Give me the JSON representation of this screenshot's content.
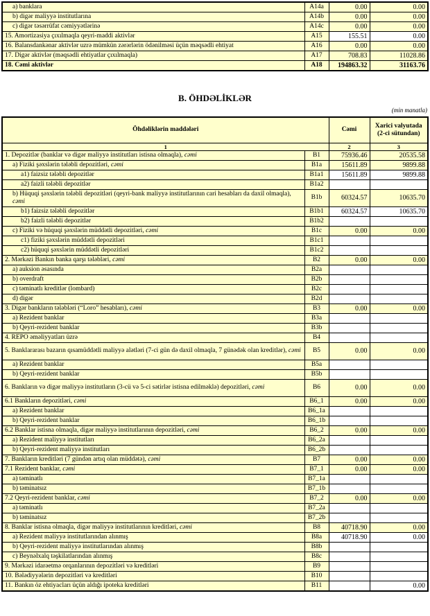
{
  "section_b_title": "B. ÖHDƏLİKLƏR",
  "unit_note": "(min manatla)",
  "colors": {
    "cell_fill": "#FFFFCC",
    "input_fill": "#FFFFFF",
    "border": "#000000",
    "text": "#000000"
  },
  "table_a": {
    "rows": [
      {
        "label": "a) banklara",
        "code": "A14a",
        "total": "0.00",
        "foreign": "0.00",
        "indent": 1
      },
      {
        "label": "b) digər maliyyə institutlarına",
        "code": "A14b",
        "total": "0.00",
        "foreign": "0.00",
        "indent": 1
      },
      {
        "label": "c) digər təsərrüfat cəmiyyətlərinə",
        "code": "A14c",
        "total": "0.00",
        "foreign": "0.00",
        "indent": 1
      },
      {
        "label": "15. Amortizasiya çıxılmaqla qeyri-maddi aktivlər",
        "code": "A15",
        "total": "155.51",
        "foreign": "0.00",
        "indent": 0,
        "input": true
      },
      {
        "label": "16. Balansdankənar aktivlər uzrə mümkün zərərlərin ödənilməsi üçün məqsədli ehtiyat",
        "code": "A16",
        "total": "0.00",
        "foreign": "0.00",
        "indent": 0
      },
      {
        "label": "17. Digər aktivlər (məqsədli ehtiyatlar çıxılmaqla)",
        "code": "A17",
        "total": "708.83",
        "foreign": "11028.86",
        "indent": 0
      },
      {
        "label": "18. Cəmi aktivlər",
        "code": "A18",
        "total": "194863.32",
        "foreign": "31163.76",
        "indent": 0,
        "bold": true
      }
    ]
  },
  "table_b": {
    "header": {
      "items_label": "Öhdəliklərin maddələri",
      "total_label": "Cəmi",
      "foreign_label": "Xarici valyutada (2-ci sütundan)",
      "col1": "1",
      "col2": "2",
      "col3": "3"
    },
    "rows": [
      {
        "label": "1. Depozitlər (banklar və digər maliyyə institutları istisna olmaqla), ",
        "suffix": "cəmi",
        "code": "B1",
        "total": "75936.46",
        "foreign": "20535.58",
        "indent": 0
      },
      {
        "label": "a) Fiziki şəxslərin tələbli depozitləri, ",
        "suffix": "cəmi",
        "code": "B1a",
        "total": "15611.89",
        "foreign": "9899.88",
        "indent": 1
      },
      {
        "label": "a1) faizsiz tələbli depozitlər",
        "code": "B1a1",
        "total": "15611.89",
        "foreign": "9899.88",
        "indent": 2,
        "input": true
      },
      {
        "label": "a2) faizli tələbli depozitlər",
        "code": "B1a2",
        "total": "",
        "foreign": "",
        "indent": 2,
        "input": true
      },
      {
        "label": "b) Hüquqi şəxslərin tələbli depozitləri (qeyri-bank maliyyə institutlarının cari hesabları da daxil olmaqla), ",
        "suffix": "cəmi",
        "code": "B1b",
        "total": "60324.57",
        "foreign": "10635.70",
        "indent": 1,
        "tall": true
      },
      {
        "label": "b1) faizsiz tələbli depozitlər",
        "code": "B1b1",
        "total": "60324.57",
        "foreign": "10635.70",
        "indent": 2,
        "input": true
      },
      {
        "label": "b2) faizli tələbli depozitlər",
        "code": "B1b2",
        "total": "",
        "foreign": "",
        "indent": 2,
        "input": true
      },
      {
        "label": "c) Fiziki və hüquqi şəxslərin müddətli depozitləri, ",
        "suffix": "cəmi",
        "code": "B1c",
        "total": "0.00",
        "foreign": "0.00",
        "indent": 1
      },
      {
        "label": "c1) fiziki şəxslərin müddətli depozitləri",
        "code": "B1c1",
        "total": "",
        "foreign": "",
        "indent": 2,
        "input": true
      },
      {
        "label": "c2) hüquqi şəxslərin müddətli depozitləri",
        "code": "B1c2",
        "total": "",
        "foreign": "",
        "indent": 2,
        "input": true
      },
      {
        "label": "2. Mərkəzi Bankın banka qarşı tələbləri, ",
        "suffix": "cəmi",
        "code": "B2",
        "total": "0.00",
        "foreign": "0.00",
        "indent": 0
      },
      {
        "label": "a) auksion əsasında",
        "code": "B2a",
        "total": "",
        "foreign": "",
        "indent": 1,
        "input": true
      },
      {
        "label": "b) overdraft",
        "code": "B2b",
        "total": "",
        "foreign": "",
        "indent": 1,
        "input": true
      },
      {
        "label": "c) təminatlı kreditlər (lombard)",
        "code": "B2c",
        "total": "",
        "foreign": "",
        "indent": 1,
        "input": true
      },
      {
        "label": "d) digər",
        "code": "B2d",
        "total": "",
        "foreign": "",
        "indent": 1,
        "input": true
      },
      {
        "label": "3. Digər bankların tələbləri (“Loro” hesabları), ",
        "suffix": "cəmi",
        "code": "B3",
        "total": "0.00",
        "foreign": "0.00",
        "indent": 0
      },
      {
        "label": "a) Rezident banklar",
        "code": "B3a",
        "total": "",
        "foreign": "",
        "indent": 1,
        "input": true
      },
      {
        "label": "b) Qeyri-rezident banklar",
        "code": "B3b",
        "total": "",
        "foreign": "",
        "indent": 1,
        "input": true
      },
      {
        "label": "4. REPO əməliyyatları  üzrə",
        "code": "B4",
        "total": "",
        "foreign": "",
        "indent": 0,
        "input": true
      },
      {
        "label": "5. Banklararası bazarın qısamüddətli maliyyə alətləri (7-ci gün də daxil olmaqla, 7 günədək olan kreditlər), ",
        "suffix": "cəmi",
        "code": "B5",
        "total": "0.00",
        "foreign": "0.00",
        "indent": 0,
        "tall": true
      },
      {
        "label": "a) Rezident banklar",
        "code": "B5a",
        "total": "",
        "foreign": "",
        "indent": 1,
        "input": true
      },
      {
        "label": "b) Qeyri-rezident banklar",
        "code": "B5b",
        "total": "",
        "foreign": "",
        "indent": 1,
        "input": true
      },
      {
        "label": "6. Bankların və digər maliyyə institutların (3-cü və 5-ci sətirlər istisna edilməklə) depozitləri, ",
        "suffix": "cəmi",
        "code": "B6",
        "total": "0.00",
        "foreign": "0.00",
        "indent": 0,
        "tall": true
      },
      {
        "label": "6.1  Bankların depozitləri, ",
        "suffix": "cəmi",
        "code": "B6_1",
        "total": "0.00",
        "foreign": "0.00",
        "indent": 0
      },
      {
        "label": "a) Rezident banklar",
        "code": "B6_1a",
        "total": "",
        "foreign": "",
        "indent": 1,
        "input": true
      },
      {
        "label": "b) Qeyri-rezident banklar",
        "code": "B6_1b",
        "total": "",
        "foreign": "",
        "indent": 1,
        "input": true
      },
      {
        "label": "6.2 Banklar istisna olmaqla, digər maliyyə institutlarının depozitləri, ",
        "suffix": "cəmi",
        "code": "B6_2",
        "total": "0.00",
        "foreign": "0.00",
        "indent": 0
      },
      {
        "label": "a) Rezident maliyyə institutları",
        "code": "B6_2a",
        "total": "",
        "foreign": "",
        "indent": 1,
        "input": true
      },
      {
        "label": "b) Qeyri-rezident maliyyə institutları",
        "code": "B6_2b",
        "total": "",
        "foreign": "",
        "indent": 1,
        "input": true
      },
      {
        "label": "7. Bankların kreditləri (7 gündən artıq olan müddətə), ",
        "suffix": "cəmi",
        "code": "B7",
        "total": "0.00",
        "foreign": "0.00",
        "indent": 0
      },
      {
        "label": "7.1 Rezident banklar, ",
        "suffix": "cəmi",
        "code": "B7_1",
        "total": "0.00",
        "foreign": "0.00",
        "indent": 0
      },
      {
        "label": "a) təminatlı",
        "code": "B7_1a",
        "total": "",
        "foreign": "",
        "indent": 1,
        "input": true
      },
      {
        "label": "b) təminatsız",
        "code": "B7_1b",
        "total": "",
        "foreign": "",
        "indent": 1,
        "input": true
      },
      {
        "label": "7.2 Qeyri-rezident banklar, ",
        "suffix": "cəmi",
        "code": "B7_2",
        "total": "0.00",
        "foreign": "0.00",
        "indent": 0
      },
      {
        "label": "a) təminatlı",
        "code": "B7_2a",
        "total": "",
        "foreign": "",
        "indent": 1,
        "input": true
      },
      {
        "label": "b) təminatsız",
        "code": "B7_2b",
        "total": "",
        "foreign": "",
        "indent": 1,
        "input": true
      },
      {
        "label": "8. Banklar istisna olmaqla, digər maliyyə institutlarının kreditləri, ",
        "suffix": "cəmi",
        "code": "B8",
        "total": "40718.90",
        "foreign": "0.00",
        "indent": 0
      },
      {
        "label": "a) Rezident maliyyə institutlarından alınmış",
        "code": "B8a",
        "total": "40718.90",
        "foreign": "0.00",
        "indent": 1,
        "input": true
      },
      {
        "label": "b) Qeyri-rezident maliyyə institutlarından alınmış",
        "code": "B8b",
        "total": "",
        "foreign": "",
        "indent": 1,
        "input": true
      },
      {
        "label": "c) Beynəlxalq təşkilatlarından alınmış",
        "code": "B8c",
        "total": "",
        "foreign": "",
        "indent": 1,
        "input": true
      },
      {
        "label": "9. Mərkəzi idarəetmə orqanlarının depozitləri və kreditləri",
        "code": "B9",
        "total": "",
        "foreign": "",
        "indent": 0,
        "input": true
      },
      {
        "label": "10. Bələdiyyələrin depozitləri və kreditləri",
        "code": "B10",
        "total": "",
        "foreign": "",
        "indent": 0,
        "input": true
      },
      {
        "label": "11. Bankın öz ehtiyacları üçün aldığı ipoteka kreditləri",
        "code": "B11",
        "total": "",
        "foreign": "0.00",
        "indent": 0,
        "input": true
      }
    ]
  }
}
